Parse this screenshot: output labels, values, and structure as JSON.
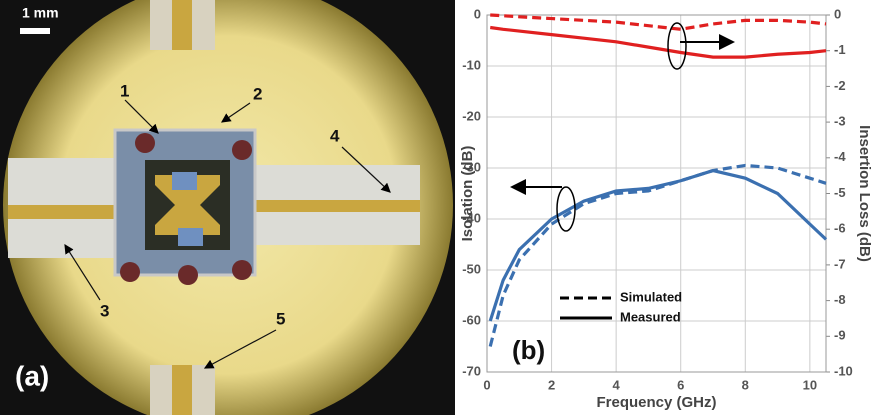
{
  "photo": {
    "scale_bar": "1 mm",
    "labels": [
      "1",
      "2",
      "3",
      "4",
      "5"
    ],
    "panel": "(a)"
  },
  "chart_data": {
    "type": "line",
    "panel": "(b)",
    "x_label": "Frequency (GHz)",
    "y_label": "Isolation (dB)",
    "y2_label": "Insertion Loss (dB)",
    "x": [
      0.1,
      0.5,
      1,
      2,
      3,
      4,
      5,
      6,
      7,
      8,
      9,
      10,
      10.5
    ],
    "xlim": [
      0,
      10.5
    ],
    "xticks": [
      0,
      2,
      4,
      6,
      8,
      10
    ],
    "ylim": [
      -70,
      0
    ],
    "yticks": [
      0,
      -10,
      -20,
      -30,
      -40,
      -50,
      -60,
      -70
    ],
    "y2lim": [
      -10,
      0
    ],
    "y2ticks": [
      0,
      -1,
      -2,
      -3,
      -4,
      -5,
      -6,
      -7,
      -8,
      -9,
      -10
    ],
    "grid": true,
    "legend": [
      {
        "label": "Simulated",
        "style": "dashed"
      },
      {
        "label": "Measured",
        "style": "solid"
      }
    ],
    "series": [
      {
        "color": "#3b70b0",
        "style": "solid",
        "axis": "y",
        "values": [
          -60,
          -52,
          -46,
          -40,
          -36.5,
          -34.5,
          -34,
          -32.5,
          -30.5,
          -32,
          -35,
          -41,
          -44
        ]
      },
      {
        "color": "#3b70b0",
        "style": "dashed",
        "axis": "y",
        "values": [
          -65,
          -55,
          -48,
          -41,
          -37,
          -35,
          -34.5,
          -32.5,
          -30.5,
          -29.5,
          -30,
          -32,
          -33
        ]
      },
      {
        "color": "#e02020",
        "style": "solid",
        "axis": "y2",
        "values": [
          -0.35,
          -0.4,
          -0.45,
          -0.55,
          -0.65,
          -0.75,
          -0.9,
          -1.05,
          -1.18,
          -1.18,
          -1.1,
          -1.05,
          -1.0
        ]
      },
      {
        "color": "#e02020",
        "style": "dashed",
        "axis": "y2",
        "values": [
          0,
          -0.02,
          -0.05,
          -0.1,
          -0.15,
          -0.2,
          -0.3,
          -0.4,
          -0.25,
          -0.15,
          -0.15,
          -0.2,
          -0.25
        ]
      }
    ]
  }
}
